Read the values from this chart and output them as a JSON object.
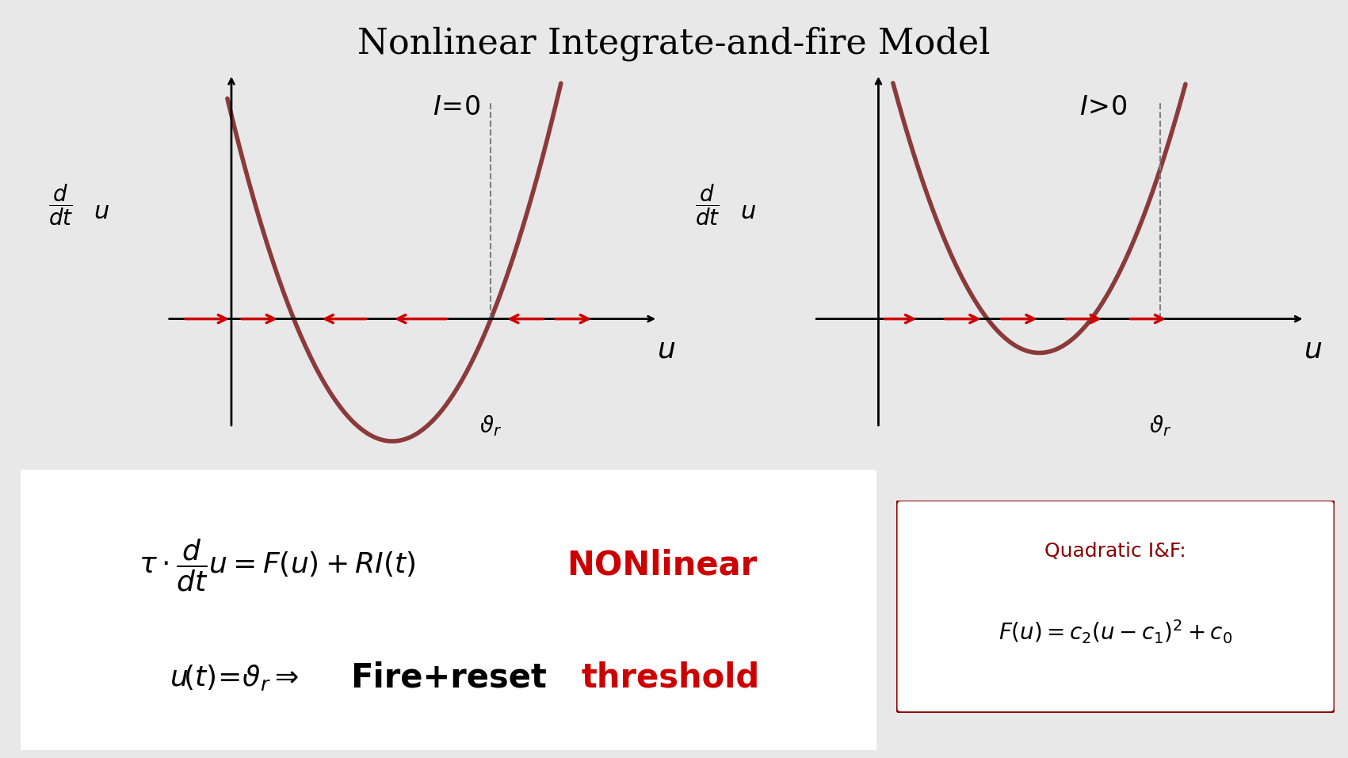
{
  "title": "Nonlinear Integrate-and-fire Model",
  "title_fontsize": 32,
  "bg_color": "#e8e8e8",
  "white": "#ffffff",
  "curve_color": "#8B3A3A",
  "arrow_color": "#CC0000",
  "axis_color": "#000000",
  "red_text_color": "#CC0000",
  "dark_red_border": "#8B0000",
  "left_label": "I=0",
  "right_label": "I>0",
  "nonlinear_text": "NONlinear",
  "fire_text": "Fire+reset",
  "threshold_text": "threshold",
  "quadratic_title": "Quadratic I&F:",
  "quadratic_eq_text": "$F(u) = c_2(u-c_1)^2 + c_0$",
  "eq1_text": "$\\tau \\cdot \\dfrac{d}{dt}u = F(u) + RI(t)$",
  "eq2_text": "$u\\left(t\\right)= \\vartheta_r \\Rightarrow$"
}
